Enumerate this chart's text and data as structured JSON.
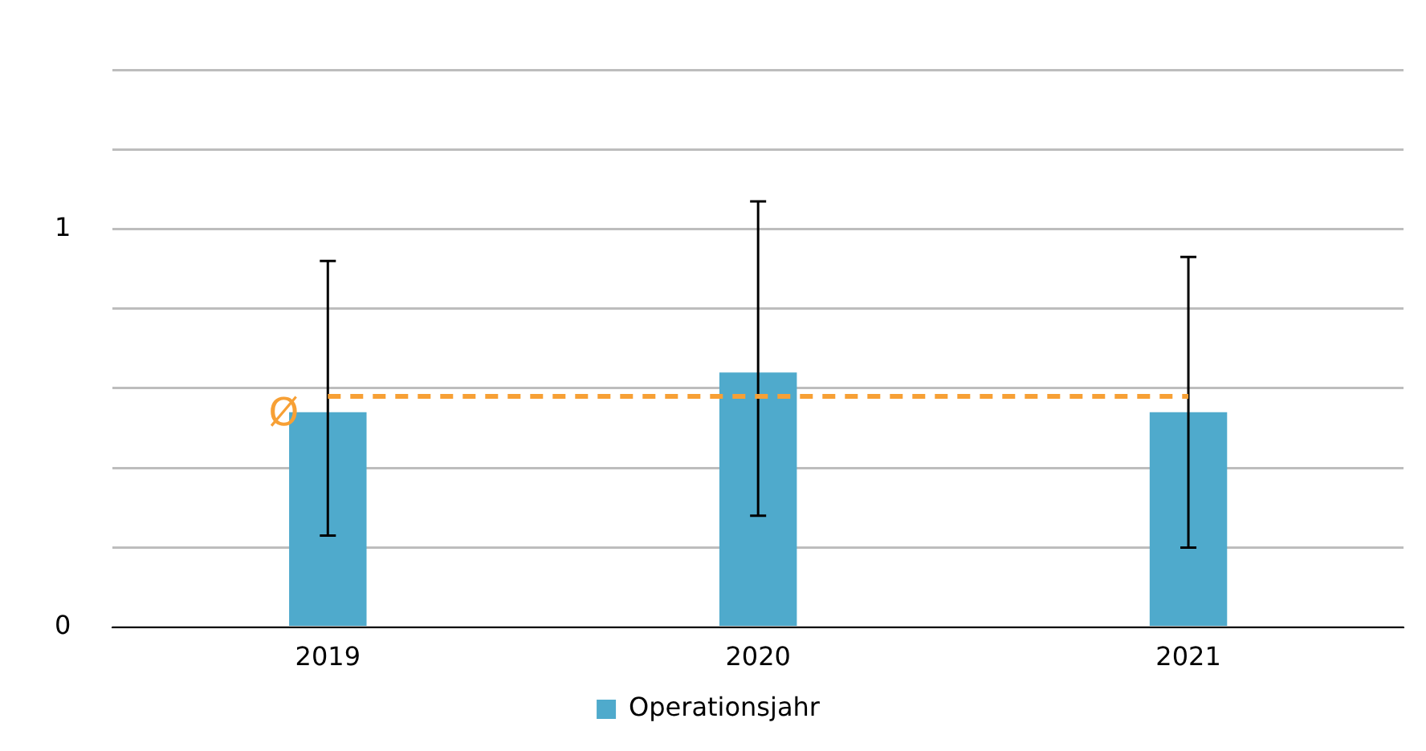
{
  "chart_data": {
    "type": "bar",
    "categories": [
      "2019",
      "2020",
      "2021"
    ],
    "series": [
      {
        "name": "Operationsjahr",
        "color": "#4faacc",
        "values": [
          0.54,
          0.64,
          0.54
        ],
        "errors": [
          [
            0.23,
            0.92
          ],
          [
            0.28,
            1.07
          ],
          [
            0.2,
            0.93
          ]
        ]
      }
    ],
    "ylim": [
      0,
      1.4
    ],
    "yticks": [
      0,
      {
        "value": 0.2,
        "label": null
      },
      {
        "value": 0.4,
        "label": null
      },
      {
        "value": 0.6,
        "label": null
      },
      {
        "value": 0.8,
        "label": null
      },
      1,
      {
        "value": 1.2,
        "label": null
      },
      {
        "value": 1.4,
        "label": null
      }
    ],
    "ref_lines": [
      {
        "axis": "y",
        "value": 0.58,
        "label": "Ø",
        "color": "#f7a035",
        "line_style": "dashed"
      }
    ],
    "grid": "y",
    "legend": "bottom"
  }
}
